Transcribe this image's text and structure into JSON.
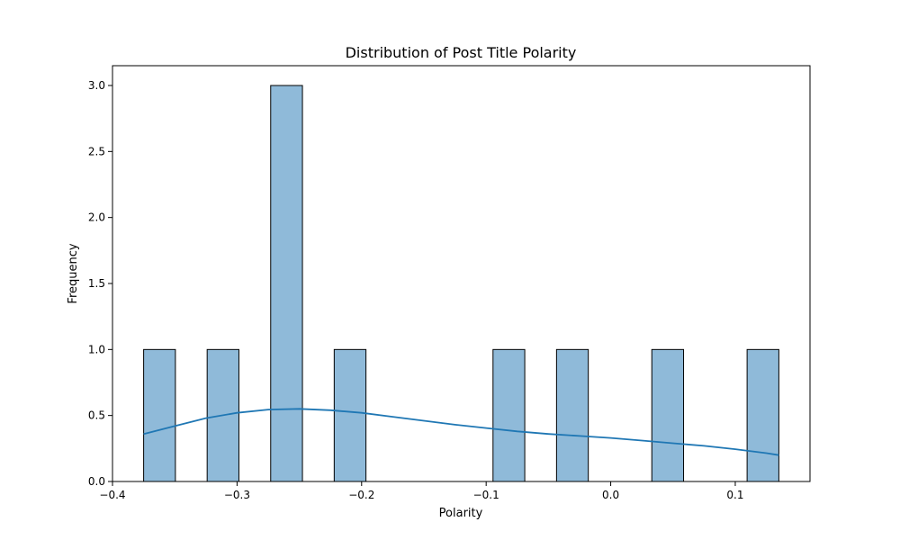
{
  "chart_data": {
    "type": "bar",
    "title": "Distribution of Post Title Polarity",
    "xlabel": "Polarity",
    "ylabel": "Frequency",
    "xlim": [
      -0.4,
      0.16
    ],
    "ylim": [
      0,
      3.15
    ],
    "grid": false,
    "x_ticks": [
      {
        "value": -0.4,
        "label": "−0.4"
      },
      {
        "value": -0.3,
        "label": "−0.3"
      },
      {
        "value": -0.2,
        "label": "−0.2"
      },
      {
        "value": -0.1,
        "label": "−0.1"
      },
      {
        "value": 0.0,
        "label": "0.0"
      },
      {
        "value": 0.1,
        "label": "0.1"
      }
    ],
    "y_ticks": [
      {
        "value": 0.0,
        "label": "0.0"
      },
      {
        "value": 0.5,
        "label": "0.5"
      },
      {
        "value": 1.0,
        "label": "1.0"
      },
      {
        "value": 1.5,
        "label": "1.5"
      },
      {
        "value": 2.0,
        "label": "2.0"
      },
      {
        "value": 2.5,
        "label": "2.5"
      },
      {
        "value": 3.0,
        "label": "3.0"
      }
    ],
    "bins": [
      {
        "x0": -0.375,
        "x1": -0.3495,
        "count": 1
      },
      {
        "x0": -0.324,
        "x1": -0.2985,
        "count": 1
      },
      {
        "x0": -0.273,
        "x1": -0.2475,
        "count": 3
      },
      {
        "x0": -0.222,
        "x1": -0.1965,
        "count": 1
      },
      {
        "x0": -0.0945,
        "x1": -0.069,
        "count": 1
      },
      {
        "x0": -0.0435,
        "x1": -0.018,
        "count": 1
      },
      {
        "x0": 0.033,
        "x1": 0.0585,
        "count": 1
      },
      {
        "x0": 0.1095,
        "x1": 0.135,
        "count": 1
      }
    ],
    "kde": {
      "x": [
        -0.375,
        -0.35,
        -0.325,
        -0.3,
        -0.275,
        -0.25,
        -0.225,
        -0.2,
        -0.175,
        -0.15,
        -0.125,
        -0.1,
        -0.075,
        -0.05,
        -0.025,
        0.0,
        0.025,
        0.05,
        0.075,
        0.1,
        0.125,
        0.135
      ],
      "y": [
        0.36,
        0.42,
        0.48,
        0.52,
        0.545,
        0.55,
        0.54,
        0.52,
        0.49,
        0.46,
        0.43,
        0.405,
        0.38,
        0.36,
        0.345,
        0.33,
        0.31,
        0.29,
        0.27,
        0.245,
        0.215,
        0.2
      ]
    },
    "colors": {
      "bar_fill": "#8fbad9",
      "bar_edge": "#000000",
      "kde_line": "#1f77b4"
    }
  }
}
